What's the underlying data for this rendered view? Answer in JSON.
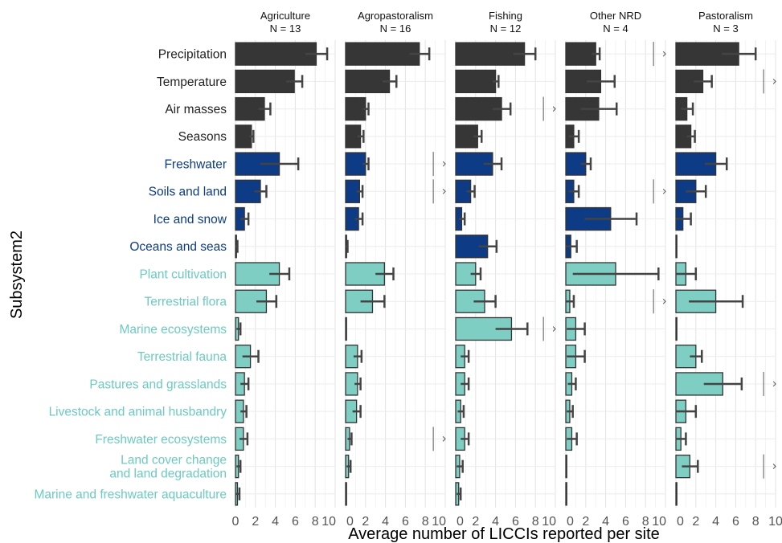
{
  "chart_data": {
    "type": "bar",
    "orientation": "horizontal",
    "facet_layout": "5 panels side by side, shared category axis",
    "xlabel": "Average number of LICCIs reported per site",
    "ylabel": "Subsystem2",
    "xlim": [
      0,
      10
    ],
    "x_ticks": [
      "0",
      "2",
      "4",
      "6",
      "8",
      "10"
    ],
    "grid": true,
    "categories": [
      "Precipitation",
      "Temperature",
      "Air masses",
      "Seasons",
      "Freshwater",
      "Soils and land",
      "Ice and snow",
      "Oceans and seas",
      "Plant cultivation",
      "Terrestrial flora",
      "Marine ecosystems",
      "Terrestrial fauna",
      "Pastures and grasslands",
      "Livestock and animal husbandry",
      "Freshwater ecosystems",
      "Land cover change\nand land degradation",
      "Marine and freshwater aquaculture"
    ],
    "category_group": [
      "climatic",
      "climatic",
      "climatic",
      "climatic",
      "physical",
      "physical",
      "physical",
      "physical",
      "biological",
      "biological",
      "biological",
      "biological",
      "biological",
      "biological",
      "biological",
      "biological",
      "biological"
    ],
    "group_colors": {
      "climatic": "#363636",
      "physical": "#0d3b85",
      "biological": "#7ecec4"
    },
    "label_colors": {
      "climatic": "#222222",
      "physical": "#0d3b85",
      "biological": "#6ccac0"
    },
    "border_color": "#333333",
    "panels": [
      {
        "title": "Agriculture",
        "n": "N = 13",
        "values": [
          8.1,
          5.9,
          2.9,
          1.6,
          4.4,
          2.5,
          0.9,
          0.1,
          4.4,
          3.1,
          0.3,
          1.5,
          0.9,
          0.8,
          0.8,
          0.3,
          0.2
        ],
        "errors": [
          1.1,
          0.8,
          0.6,
          0.2,
          1.9,
          0.6,
          0.4,
          0.1,
          1.0,
          1.0,
          0.2,
          0.8,
          0.4,
          0.3,
          0.4,
          0.2,
          0.2
        ],
        "offscale": []
      },
      {
        "title": "Agropastoralism",
        "n": "N = 16",
        "values": [
          7.4,
          4.4,
          2.0,
          1.5,
          2.0,
          1.4,
          1.3,
          0.1,
          3.9,
          2.7,
          0.0,
          1.2,
          1.2,
          1.1,
          0.4,
          0.3,
          0.0
        ],
        "errors": [
          1.0,
          0.7,
          0.3,
          0.3,
          0.3,
          0.3,
          0.4,
          0.1,
          0.9,
          1.2,
          0.0,
          0.4,
          0.3,
          0.4,
          0.2,
          0.2,
          0.0
        ],
        "offscale": [
          {
            "row": 4,
            "at": 8.8
          },
          {
            "row": 5,
            "at": 8.8
          },
          {
            "row": 14,
            "at": 8.8
          }
        ]
      },
      {
        "title": "Fishing",
        "n": "N = 12",
        "values": [
          6.9,
          4.0,
          4.6,
          2.2,
          3.7,
          1.5,
          0.6,
          3.2,
          2.0,
          2.9,
          5.6,
          0.9,
          0.9,
          0.5,
          0.9,
          0.4,
          0.3
        ],
        "errors": [
          1.1,
          0.3,
          0.9,
          0.4,
          0.9,
          0.4,
          0.3,
          0.9,
          0.5,
          1.1,
          1.6,
          0.4,
          0.4,
          0.3,
          0.4,
          0.3,
          0.2
        ],
        "offscale": [
          {
            "row": 2,
            "at": 8.8
          },
          {
            "row": 10,
            "at": 8.8
          }
        ]
      },
      {
        "title": "Other NRD",
        "n": "N = 4",
        "values": [
          3.0,
          3.5,
          3.3,
          0.8,
          2.0,
          0.8,
          4.5,
          0.5,
          5.0,
          0.4,
          1.0,
          1.0,
          0.6,
          0.4,
          0.6,
          0.0,
          0.0
        ],
        "errors": [
          0.4,
          1.4,
          1.8,
          0.5,
          0.5,
          0.5,
          2.6,
          0.6,
          4.3,
          0.4,
          0.9,
          0.9,
          0.4,
          0.3,
          0.5,
          0.0,
          0.0
        ],
        "offscale": [
          {
            "row": 0,
            "at": 8.8
          },
          {
            "row": 5,
            "at": 8.8
          },
          {
            "row": 9,
            "at": 8.8
          }
        ]
      },
      {
        "title": "Pastoralism",
        "n": "N = 3",
        "values": [
          6.3,
          2.7,
          1.1,
          1.5,
          4.0,
          2.0,
          0.7,
          0.0,
          1.0,
          4.0,
          0.0,
          2.0,
          4.7,
          1.0,
          0.5,
          1.4,
          0.0
        ],
        "errors": [
          1.7,
          0.9,
          0.6,
          0.4,
          1.1,
          1.0,
          0.8,
          0.0,
          1.0,
          2.7,
          0.0,
          0.6,
          1.9,
          1.0,
          0.5,
          0.8,
          0.0
        ],
        "offscale": [
          {
            "row": 1,
            "at": 8.8
          },
          {
            "row": 12,
            "at": 8.8
          },
          {
            "row": 15,
            "at": 8.8
          }
        ]
      }
    ]
  }
}
